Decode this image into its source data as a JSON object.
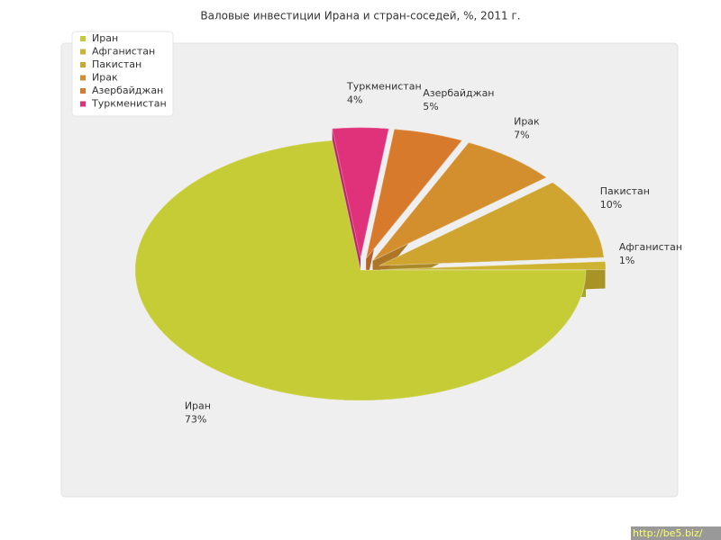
{
  "chart_data": {
    "type": "pie",
    "title": "Валовые инвестиции Ирана и стран-соседей, %, 2011 г.",
    "categories": [
      "Иран",
      "Афганистан",
      "Пакистан",
      "Ирак",
      "Азербайджан",
      "Туркменистан"
    ],
    "values": [
      73,
      1,
      10,
      7,
      5,
      4
    ],
    "value_labels": [
      "73%",
      "1%",
      "10%",
      "7%",
      "5%",
      "4%"
    ],
    "colors": [
      "#c5cc36",
      "#cdb32f",
      "#cfa52f",
      "#d38f2e",
      "#d87a2c",
      "#e0327a"
    ],
    "legend": "top-left",
    "watermark": "http://be5.biz/"
  }
}
